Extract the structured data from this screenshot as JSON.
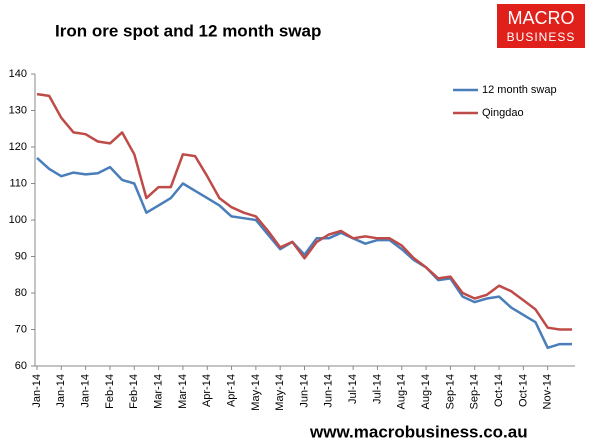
{
  "chart_data": {
    "type": "line",
    "title": "Iron ore spot and 12 month swap",
    "categories": [
      "Jan-14",
      null,
      "Jan-14",
      null,
      "Jan-14",
      null,
      "Feb-14",
      null,
      "Feb-14",
      null,
      "Mar-14",
      null,
      "Mar-14",
      null,
      "Apr-14",
      null,
      "Apr-14",
      null,
      "May-14",
      null,
      "May-14",
      null,
      "Jun-14",
      null,
      "Jun-14",
      null,
      "Jul-14",
      null,
      "Jul-14",
      null,
      "Aug-14",
      null,
      "Aug-14",
      null,
      "Sep-14",
      null,
      "Sep-14",
      null,
      "Oct-14",
      null,
      "Oct-14",
      null,
      "Nov-14",
      null,
      null
    ],
    "series": [
      {
        "name": "12 month swap",
        "color": "#4a7ebb",
        "values": [
          117,
          114,
          112,
          113,
          112.5,
          112.8,
          114.5,
          111,
          110,
          102,
          104,
          106,
          110,
          108,
          106,
          104,
          101,
          100.5,
          100,
          96,
          92,
          94,
          90.5,
          95,
          95,
          96.5,
          95,
          93.5,
          94.5,
          94.5,
          92,
          89,
          87,
          83.5,
          84,
          79,
          77.5,
          78.5,
          79,
          76,
          74,
          72,
          65,
          66,
          66
        ]
      },
      {
        "name": "Qingdao",
        "color": "#be4b48",
        "values": [
          134.5,
          134,
          128,
          124,
          123.5,
          121.5,
          121,
          124,
          118,
          106,
          109,
          109,
          118,
          117.5,
          112,
          106,
          103.5,
          102,
          101,
          97,
          92.5,
          94,
          89.5,
          94,
          96,
          97,
          95,
          95.5,
          95,
          95,
          93,
          89.5,
          87,
          84,
          84.5,
          80,
          78.5,
          79.5,
          82,
          80.5,
          78,
          75.5,
          70.5,
          70,
          70
        ]
      }
    ],
    "ylim": [
      60,
      140
    ],
    "yticks": [
      60,
      70,
      80,
      90,
      100,
      110,
      120,
      130,
      140
    ],
    "grid": false,
    "legend": "upper right"
  },
  "logo": {
    "line1": "MACRO",
    "line2": "BUSINESS"
  },
  "footer": "www.macrobusiness.co.au"
}
